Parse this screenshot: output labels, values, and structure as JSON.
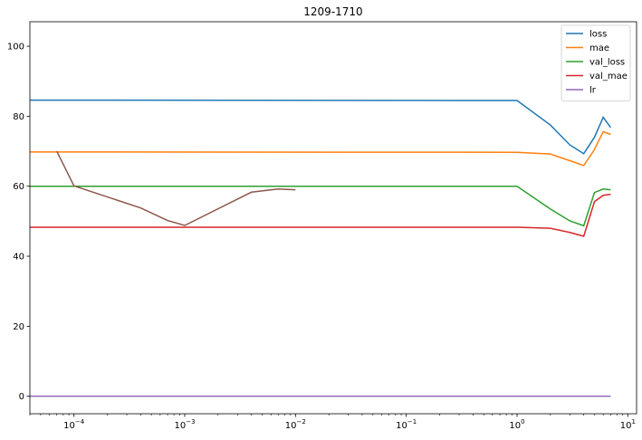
{
  "chart_data": {
    "type": "line",
    "title": "1209-1710",
    "xlabel": "",
    "ylabel": "",
    "xscale": "log",
    "xlim": [
      4e-05,
      12
    ],
    "ylim": [
      -5,
      107
    ],
    "grid": false,
    "legend_position": "top-right",
    "x_ticks": [
      {
        "value": 0.0001,
        "base": "10",
        "exp": "−4"
      },
      {
        "value": 0.001,
        "base": "10",
        "exp": "−3"
      },
      {
        "value": 0.01,
        "base": "10",
        "exp": "−2"
      },
      {
        "value": 0.1,
        "base": "10",
        "exp": "−1"
      },
      {
        "value": 1,
        "base": "10",
        "exp": "0"
      },
      {
        "value": 10,
        "base": "10",
        "exp": "1"
      }
    ],
    "y_ticks": [
      0,
      20,
      40,
      60,
      80,
      100
    ],
    "series": [
      {
        "name": "loss",
        "color": "#1f77b4",
        "legend": true,
        "points": [
          [
            4e-05,
            84.6
          ],
          [
            1,
            84.5
          ],
          [
            2,
            77.5
          ],
          [
            3,
            71.8
          ],
          [
            4,
            69.3
          ],
          [
            5,
            74
          ],
          [
            6,
            79.7
          ],
          [
            7,
            76.8
          ]
        ]
      },
      {
        "name": "mae",
        "color": "#ff7f0e",
        "legend": true,
        "points": [
          [
            4e-05,
            69.8
          ],
          [
            1,
            69.7
          ],
          [
            2,
            69.2
          ],
          [
            3,
            67.3
          ],
          [
            4,
            65.9
          ],
          [
            5,
            70.5
          ],
          [
            6,
            75.6
          ],
          [
            7,
            74.8
          ]
        ]
      },
      {
        "name": "val_loss",
        "color": "#2ca02c",
        "legend": true,
        "points": [
          [
            4e-05,
            60.0
          ],
          [
            1,
            60.0
          ],
          [
            2,
            53.5
          ],
          [
            3,
            50.1
          ],
          [
            4,
            48.7
          ],
          [
            5,
            58.2
          ],
          [
            6,
            59.2
          ],
          [
            7,
            59.0
          ]
        ]
      },
      {
        "name": "val_mae",
        "color": "#d62728",
        "legend": true,
        "points": [
          [
            4e-05,
            48.3
          ],
          [
            1,
            48.3
          ],
          [
            2,
            48.0
          ],
          [
            3,
            46.8
          ],
          [
            4,
            45.7
          ],
          [
            5,
            55.6
          ],
          [
            6,
            57.4
          ],
          [
            7,
            57.7
          ]
        ]
      },
      {
        "name": "lr",
        "color": "#9467bd",
        "legend": true,
        "points": [
          [
            4e-05,
            0.0
          ],
          [
            7,
            0.0
          ]
        ]
      },
      {
        "color": "#8c564b",
        "legend": false,
        "points": [
          [
            7e-05,
            70.0
          ],
          [
            0.0001,
            60.1
          ],
          [
            0.0004,
            53.8
          ],
          [
            0.0007,
            50.2
          ],
          [
            0.001,
            48.8
          ],
          [
            0.004,
            58.3
          ],
          [
            0.007,
            59.2
          ],
          [
            0.01,
            59.0
          ]
        ]
      }
    ]
  }
}
